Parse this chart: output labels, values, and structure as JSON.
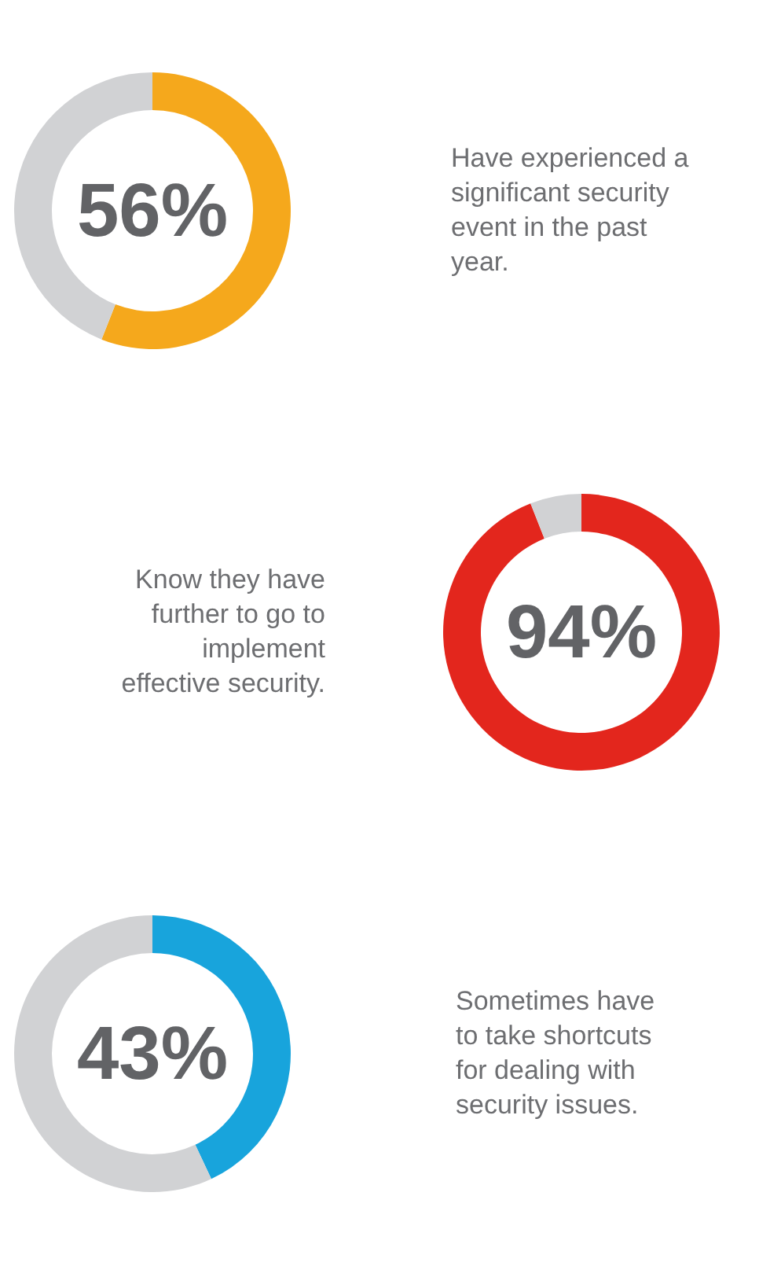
{
  "chart_data": [
    {
      "type": "donut",
      "categories": [
        null,
        null
      ],
      "values": [
        56,
        44
      ],
      "colors": [
        "#f5a81c",
        "#d1d2d4"
      ],
      "annotations": [
        "56%",
        "Have experienced a\nsignificant security\nevent in the past\nyear."
      ]
    },
    {
      "type": "donut",
      "categories": [
        null,
        null
      ],
      "values": [
        94,
        6
      ],
      "colors": [
        "#e3261d",
        "#d1d2d4"
      ],
      "annotations": [
        "94%",
        "Know they have\nfurther to go to\nimplement\neffective security."
      ]
    },
    {
      "type": "donut",
      "categories": [
        null,
        null
      ],
      "values": [
        43,
        57
      ],
      "colors": [
        "#18a4dc",
        "#d1d2d4"
      ],
      "annotations": [
        "43%",
        "Sometimes have\nto take shortcuts\nfor dealing with\nsecurity issues."
      ]
    }
  ]
}
